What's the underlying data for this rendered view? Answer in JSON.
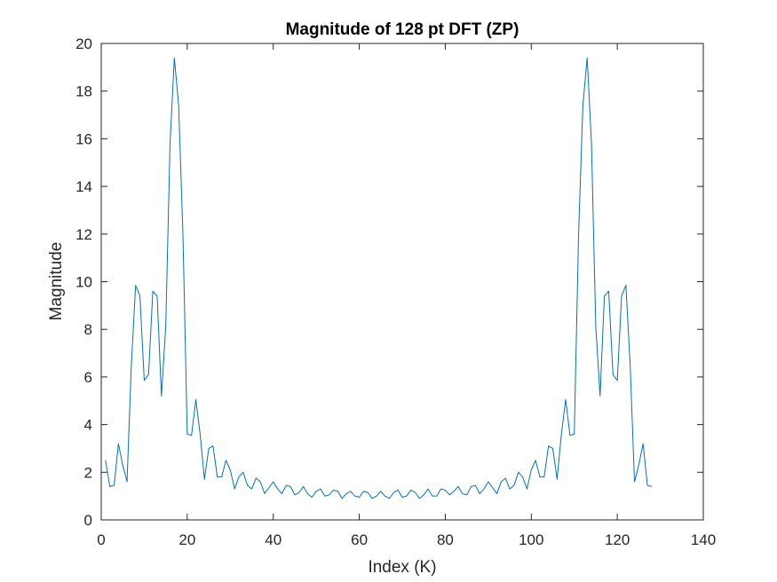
{
  "chart_data": {
    "type": "line",
    "title": "Magnitude of 128 pt DFT (ZP)",
    "xlabel": "Index (K)",
    "ylabel": "Magnitude",
    "xlim": [
      0,
      140
    ],
    "ylim": [
      0,
      20
    ],
    "xticks": [
      0,
      20,
      40,
      60,
      80,
      100,
      120,
      140
    ],
    "yticks": [
      0,
      2,
      4,
      6,
      8,
      10,
      12,
      14,
      16,
      18,
      20
    ],
    "xtick_labels": [
      "0",
      "20",
      "40",
      "60",
      "80",
      "100",
      "120",
      "140"
    ],
    "ytick_labels": [
      "0",
      "2",
      "4",
      "6",
      "8",
      "10",
      "12",
      "14",
      "16",
      "18",
      "20"
    ],
    "grid": false,
    "line_color": "#0072bd",
    "series": [
      {
        "x": [
          1,
          2,
          3,
          4,
          5,
          6,
          7,
          8,
          9,
          10,
          11,
          12,
          13,
          14,
          15,
          16,
          17,
          18,
          19,
          20,
          21,
          22,
          23,
          24,
          25,
          26,
          27,
          28,
          29,
          30,
          31,
          32,
          33,
          34,
          35,
          36,
          37,
          38,
          39,
          40,
          41,
          42,
          43,
          44,
          45,
          46,
          47,
          48,
          49,
          50,
          51,
          52,
          53,
          54,
          55,
          56,
          57,
          58,
          59,
          60,
          61,
          62,
          63,
          64,
          65,
          66,
          67,
          68,
          69,
          70,
          71,
          72,
          73,
          74,
          75,
          76,
          77,
          78,
          79,
          80,
          81,
          82,
          83,
          84,
          85,
          86,
          87,
          88,
          89,
          90,
          91,
          92,
          93,
          94,
          95,
          96,
          97,
          98,
          99,
          100,
          101,
          102,
          103,
          104,
          105,
          106,
          107,
          108,
          109,
          110,
          111,
          112,
          113,
          114,
          115,
          116,
          117,
          118,
          119,
          120,
          121,
          122,
          123,
          124,
          125,
          126,
          127,
          128
        ],
        "values": [
          2.5,
          1.4,
          1.45,
          3.2,
          2.3,
          1.6,
          6.5,
          9.85,
          9.4,
          5.85,
          6.1,
          9.6,
          9.4,
          5.2,
          8.1,
          15.8,
          19.4,
          17.4,
          12,
          3.6,
          3.55,
          5.05,
          3.6,
          1.7,
          3,
          3.1,
          1.8,
          1.8,
          2.5,
          2.1,
          1.3,
          1.8,
          2,
          1.45,
          1.3,
          1.75,
          1.6,
          1.1,
          1.35,
          1.6,
          1.3,
          1.1,
          1.45,
          1.4,
          1.05,
          1.15,
          1.4,
          1.1,
          0.95,
          1.2,
          1.3,
          1,
          1.05,
          1.25,
          1.2,
          0.9,
          1.1,
          1.2,
          1,
          0.95,
          1.2,
          1.15,
          0.9,
          1,
          1.2,
          1,
          0.9,
          1.15,
          1.25,
          0.95,
          1,
          1.25,
          1.15,
          0.9,
          1.05,
          1.3,
          1,
          1,
          1.3,
          1.25,
          1.05,
          1.2,
          1.4,
          1.1,
          1.05,
          1.4,
          1.45,
          1.1,
          1.3,
          1.6,
          1.35,
          1.1,
          1.6,
          1.75,
          1.3,
          1.45,
          2,
          1.8,
          1.3,
          2.1,
          2.5,
          1.8,
          1.8,
          3.1,
          3,
          1.7,
          3.6,
          5.05,
          3.55,
          3.6,
          12,
          17.4,
          19.4,
          15.8,
          8.1,
          5.2,
          9.4,
          9.6,
          6.1,
          5.85,
          9.4,
          9.85,
          6.5,
          1.6,
          2.3,
          3.2,
          1.45,
          1.4
        ]
      }
    ]
  }
}
